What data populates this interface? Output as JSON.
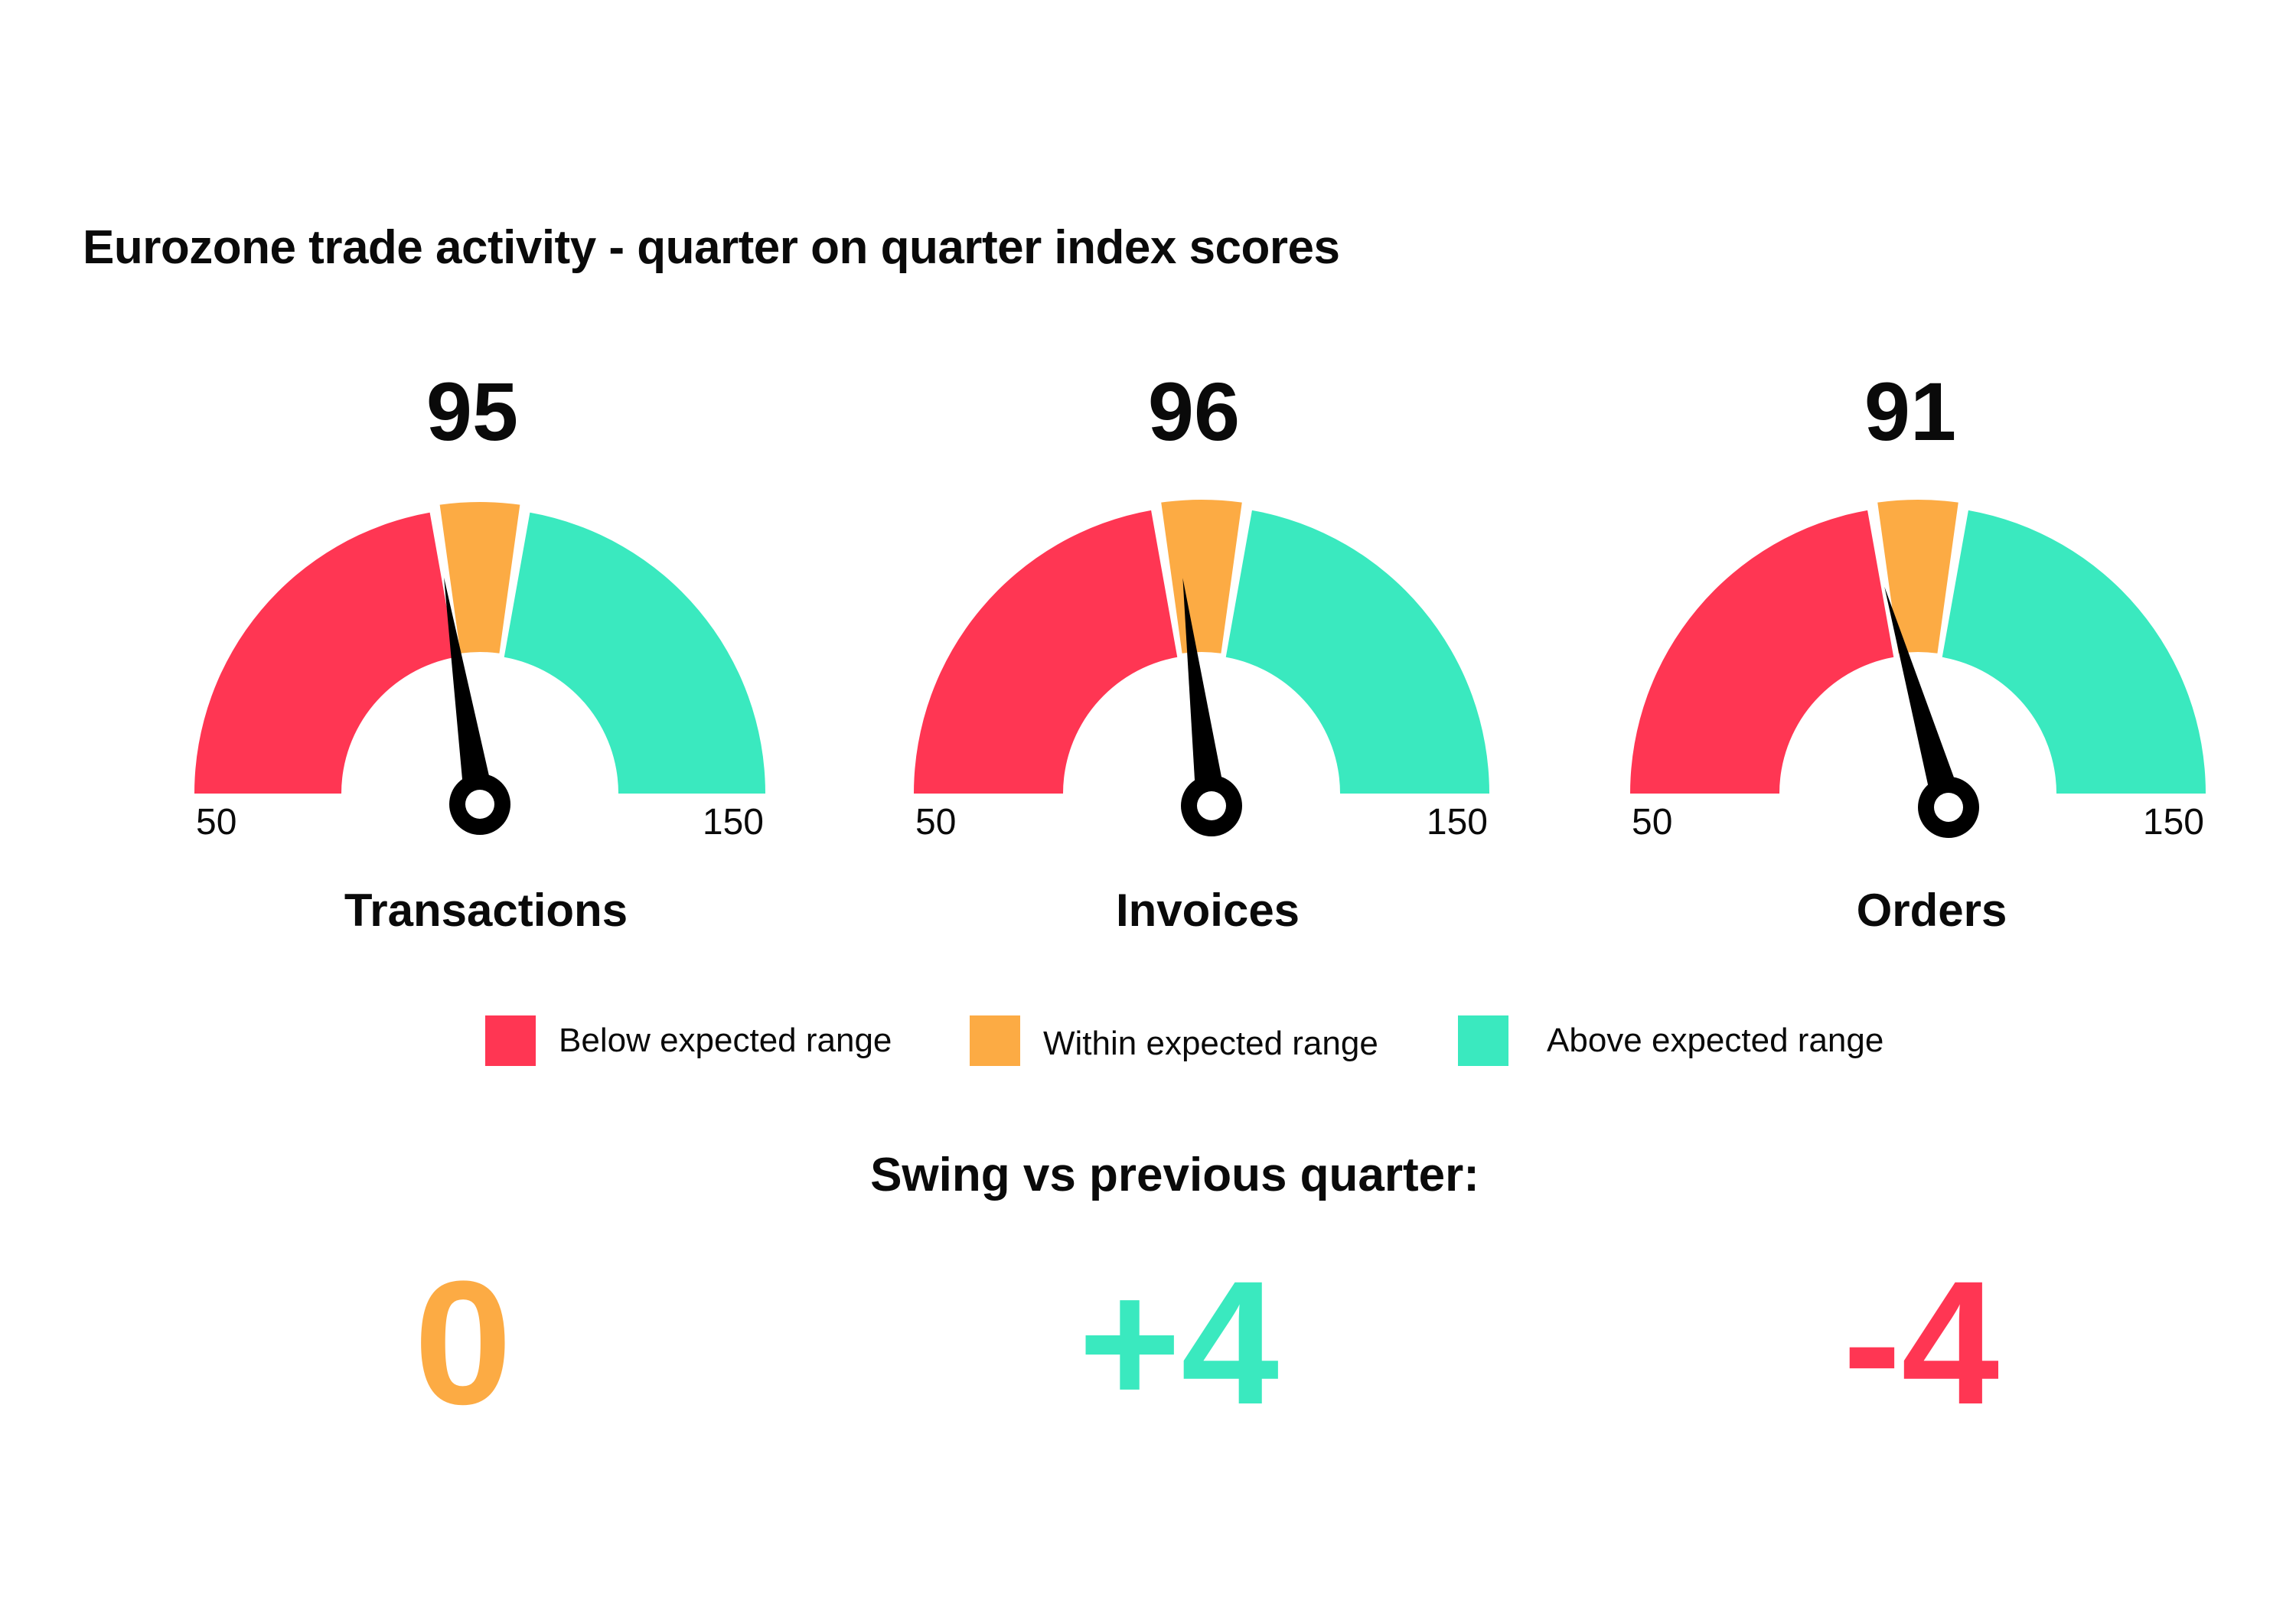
{
  "title": "Eurozone trade activity - quarter on quarter index scores",
  "colors": {
    "below": "#ff3653",
    "within": "#fcab44",
    "above": "#3ae9bf",
    "needle": "#000000"
  },
  "chart_data": {
    "type": "gauge",
    "title": "Eurozone trade activity - quarter on quarter index scores",
    "range": [
      50,
      150
    ],
    "bands": [
      {
        "name": "Below expected range",
        "from": 50,
        "to": 95
      },
      {
        "name": "Within expected range",
        "from": 95,
        "to": 105
      },
      {
        "name": "Above expected range",
        "from": 105,
        "to": 150
      }
    ],
    "gauges": [
      {
        "label": "Transactions",
        "value": 95,
        "min_label": "50",
        "max_label": "150"
      },
      {
        "label": "Invoices",
        "value": 96,
        "min_label": "50",
        "max_label": "150"
      },
      {
        "label": "Orders",
        "value": 91,
        "min_label": "50",
        "max_label": "150"
      }
    ]
  },
  "legend": [
    {
      "label": "Below expected range",
      "color": "#ff3653"
    },
    {
      "label": "Within expected range",
      "color": "#fcab44"
    },
    {
      "label": "Above expected range",
      "color": "#3ae9bf"
    }
  ],
  "swing": {
    "title": "Swing vs previous quarter:",
    "values": [
      {
        "text": "0",
        "color": "#fcab44"
      },
      {
        "text": "+4",
        "color": "#3ae9bf"
      },
      {
        "text": "-4",
        "color": "#ff3653"
      }
    ]
  }
}
